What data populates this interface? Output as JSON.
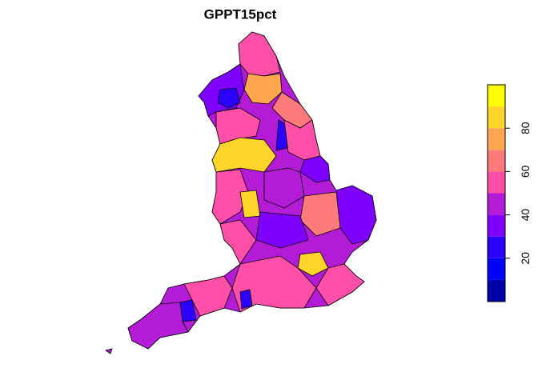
{
  "chart_data": {
    "type": "map",
    "title": "GPPT15pct",
    "legend": {
      "bins": [
        0,
        10,
        20,
        30,
        40,
        50,
        60,
        70,
        80,
        90,
        100
      ],
      "colors": [
        "#0000AA",
        "#0000FF",
        "#2A00FF",
        "#8000FF",
        "#B31BD6",
        "#FF4FA8",
        "#FF7A7A",
        "#FFA64F",
        "#FFD52B",
        "#FFFF00"
      ],
      "ylim": [
        0,
        100
      ],
      "yticks": [
        20,
        40,
        60,
        80
      ]
    }
  }
}
